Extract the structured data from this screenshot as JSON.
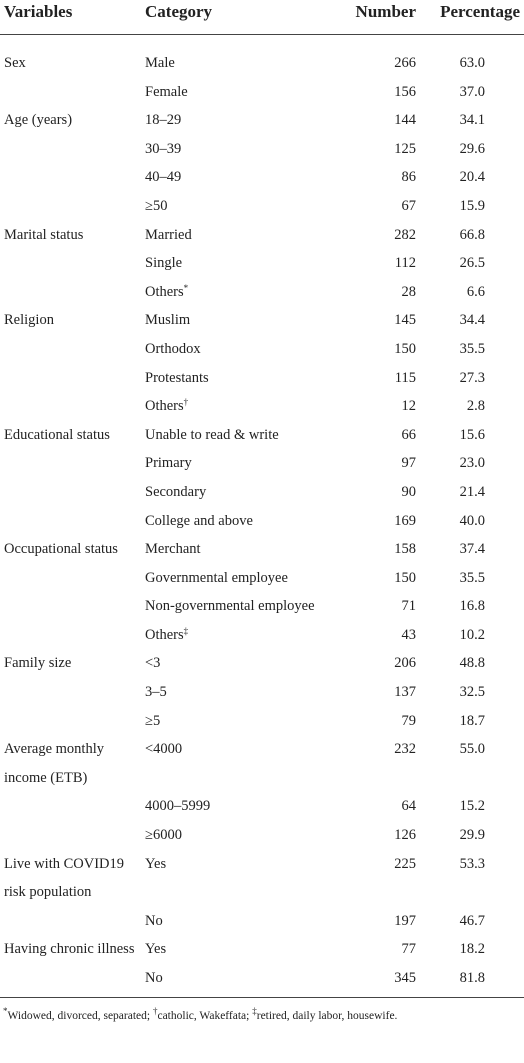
{
  "header": [
    "Variables",
    "Category",
    "Number",
    "Percentage"
  ],
  "groups": [
    {
      "variable": "Sex",
      "rows": [
        {
          "category": "Male",
          "number": "266",
          "percentage": "63.0"
        },
        {
          "category": "Female",
          "number": "156",
          "percentage": "37.0"
        }
      ]
    },
    {
      "variable": "Age (years)",
      "rows": [
        {
          "category": "18–29",
          "number": "144",
          "percentage": "34.1"
        },
        {
          "category": "30–39",
          "number": "125",
          "percentage": "29.6"
        },
        {
          "category": "40–49",
          "number": "86",
          "percentage": "20.4"
        },
        {
          "category": "≥50",
          "number": "67",
          "percentage": "15.9"
        }
      ]
    },
    {
      "variable": "Marital status",
      "rows": [
        {
          "category": "Married",
          "number": "282",
          "percentage": "66.8"
        },
        {
          "category": "Single",
          "number": "112",
          "percentage": "26.5"
        },
        {
          "category": "Others",
          "mark": "*",
          "number": "28",
          "percentage": "6.6"
        }
      ]
    },
    {
      "variable": "Religion",
      "rows": [
        {
          "category": "Muslim",
          "number": "145",
          "percentage": "34.4"
        },
        {
          "category": "Orthodox",
          "number": "150",
          "percentage": "35.5"
        },
        {
          "category": "Protestants",
          "number": "115",
          "percentage": "27.3"
        },
        {
          "category": "Others",
          "mark": "†",
          "number": "12",
          "percentage": "2.8"
        }
      ]
    },
    {
      "variable": "Educational status",
      "rows": [
        {
          "category": "Unable to read & write",
          "number": "66",
          "percentage": "15.6"
        },
        {
          "category": "Primary",
          "number": "97",
          "percentage": "23.0"
        },
        {
          "category": "Secondary",
          "number": "90",
          "percentage": "21.4"
        },
        {
          "category": "College and above",
          "number": "169",
          "percentage": "40.0"
        }
      ]
    },
    {
      "variable": "Occupational status",
      "rows": [
        {
          "category": "Merchant",
          "number": "158",
          "percentage": "37.4"
        },
        {
          "category": "Governmental employee",
          "number": "150",
          "percentage": "35.5"
        },
        {
          "category": "Non-governmental employee",
          "number": "71",
          "percentage": "16.8"
        },
        {
          "category": "Others",
          "mark": "‡",
          "number": "43",
          "percentage": "10.2"
        }
      ]
    },
    {
      "variable": "Family size",
      "rows": [
        {
          "category": "<3",
          "number": "206",
          "percentage": "48.8"
        },
        {
          "category": "3–5",
          "number": "137",
          "percentage": "32.5"
        },
        {
          "category": "≥5",
          "number": "79",
          "percentage": "18.7"
        }
      ]
    },
    {
      "variable": "Average monthly income (ETB)",
      "rows": [
        {
          "category": "<4000",
          "number": "232",
          "percentage": "55.0"
        },
        {
          "category": "4000–5999",
          "number": "64",
          "percentage": "15.2"
        },
        {
          "category": "≥6000",
          "number": "126",
          "percentage": "29.9"
        }
      ]
    },
    {
      "variable": "Live with COVID19 risk population",
      "rows": [
        {
          "category": "Yes",
          "number": "225",
          "percentage": "53.3"
        },
        {
          "category": "No",
          "number": "197",
          "percentage": "46.7"
        }
      ]
    },
    {
      "variable": "Having chronic illness",
      "rows": [
        {
          "category": "Yes",
          "number": "77",
          "percentage": "18.2"
        },
        {
          "category": "No",
          "number": "345",
          "percentage": "81.8"
        }
      ]
    }
  ],
  "footnotes": [
    {
      "mark": "*",
      "text": "Widowed, divorced, separated; "
    },
    {
      "mark": "†",
      "text": "catholic, Wakeffata; "
    },
    {
      "mark": "‡",
      "text": "retired, daily labor, housewife."
    }
  ]
}
